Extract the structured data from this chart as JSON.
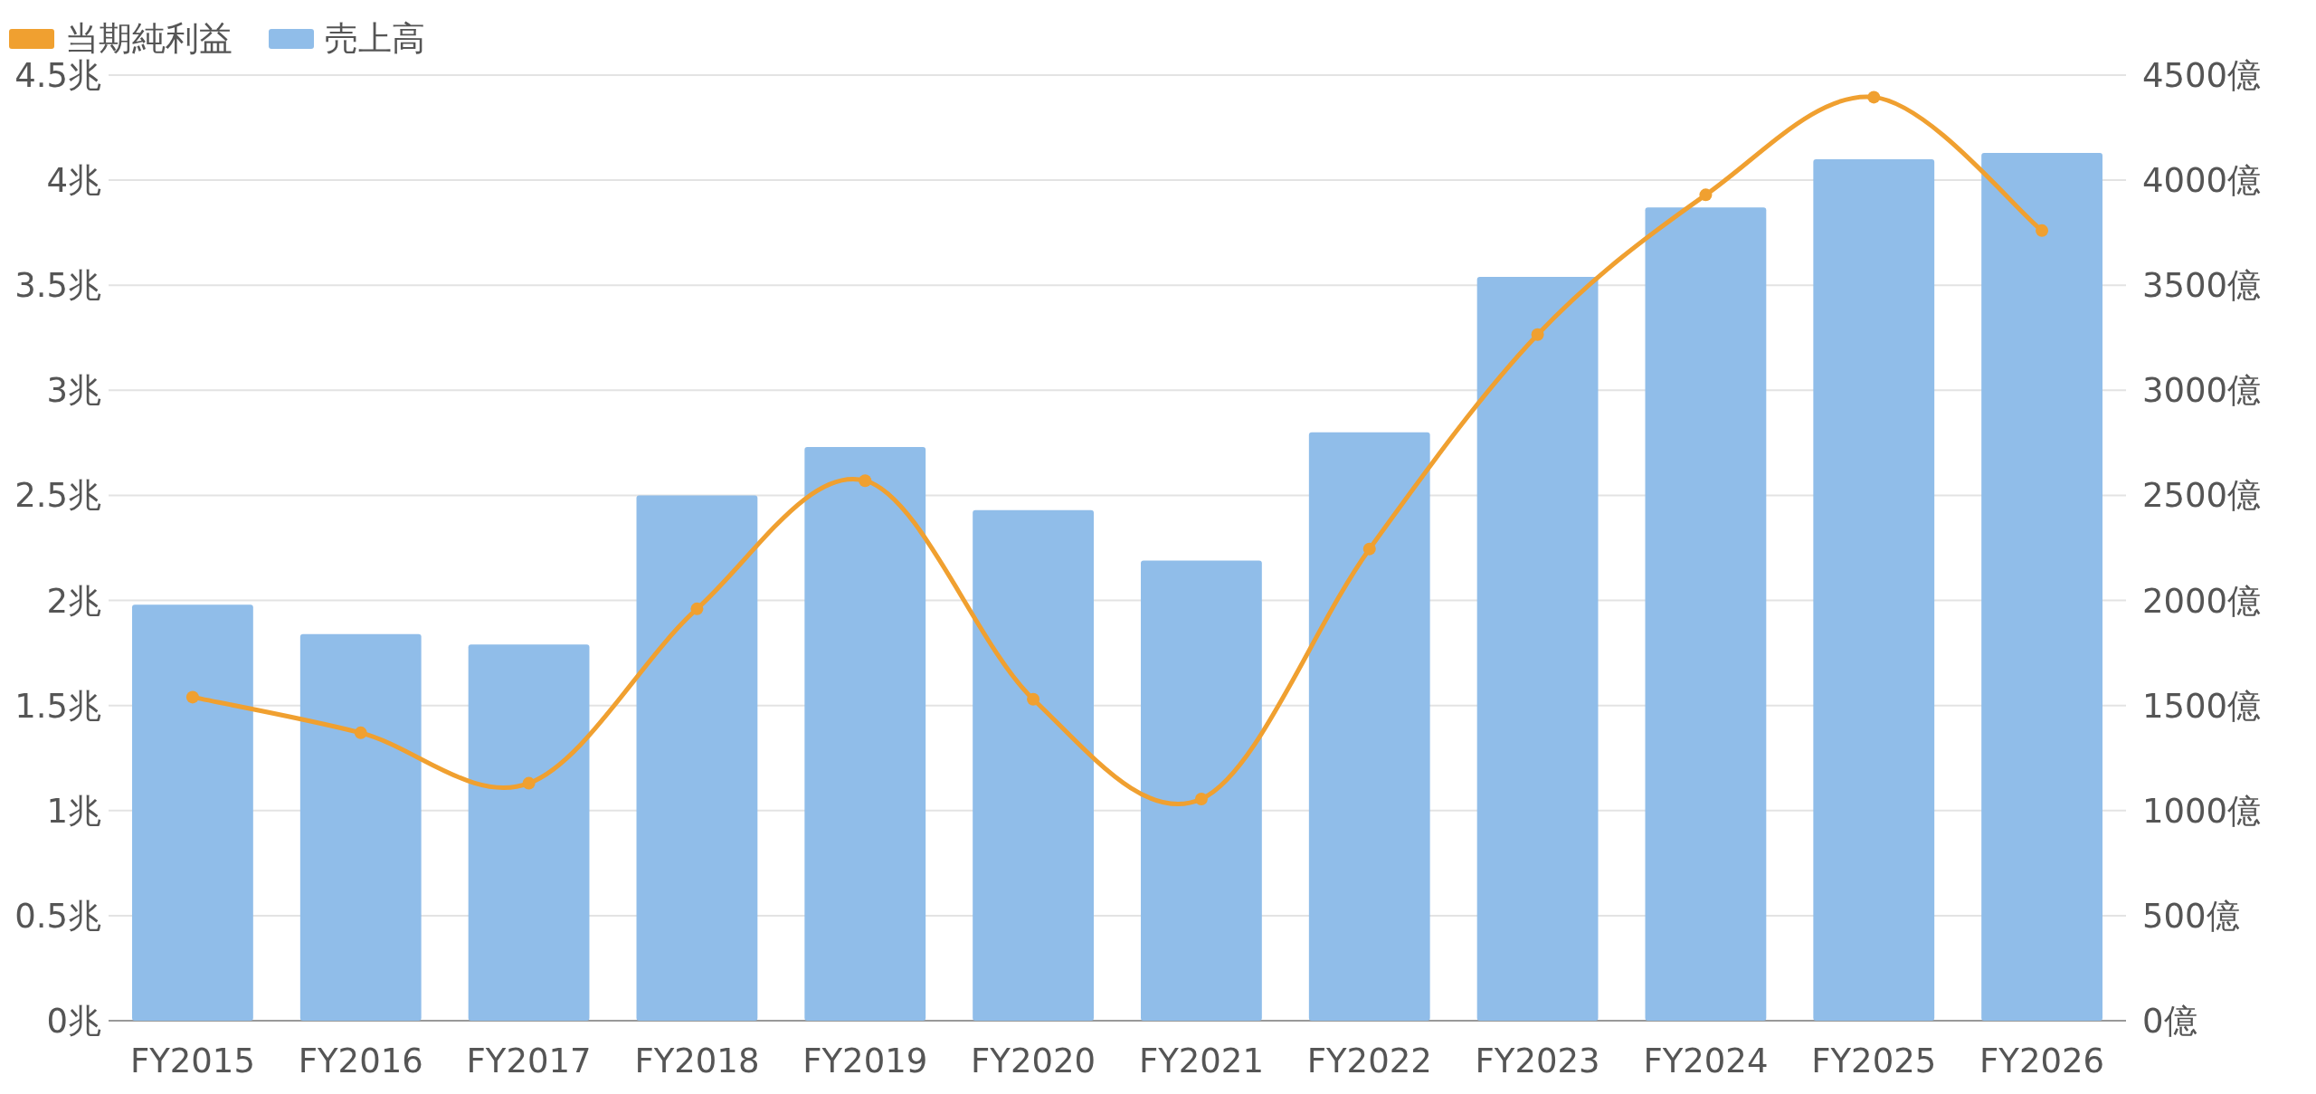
{
  "chart_data": {
    "type": "bar",
    "categories": [
      "FY2015",
      "FY2016",
      "FY2017",
      "FY2018",
      "FY2019",
      "FY2020",
      "FY2021",
      "FY2022",
      "FY2023",
      "FY2024",
      "FY2025",
      "FY2026"
    ],
    "series": [
      {
        "name": "当期純利益",
        "type": "line",
        "axis": "y2",
        "color": "#f0a030",
        "values": [
          1540,
          1370,
          1130,
          1960,
          2570,
          1530,
          1055,
          2245,
          3265,
          3930,
          4395,
          3760
        ]
      },
      {
        "name": "売上高",
        "color": "#90bde9",
        "values": [
          1.98,
          1.84,
          1.79,
          2.5,
          2.73,
          2.43,
          2.19,
          2.8,
          3.54,
          3.87,
          4.1,
          4.13
        ]
      }
    ],
    "ylim": [
      0,
      4.5
    ],
    "yticks": [
      {
        "value": 0,
        "label": "0兆"
      },
      {
        "value": 0.5,
        "label": "0.5兆"
      },
      {
        "value": 1,
        "label": "1兆"
      },
      {
        "value": 1.5,
        "label": "1.5兆"
      },
      {
        "value": 2,
        "label": "2兆"
      },
      {
        "value": 2.5,
        "label": "2.5兆"
      },
      {
        "value": 3,
        "label": "3兆"
      },
      {
        "value": 3.5,
        "label": "3.5兆"
      },
      {
        "value": 4,
        "label": "4兆"
      },
      {
        "value": 4.5,
        "label": "4.5兆"
      }
    ],
    "y2lim": [
      0,
      4500
    ],
    "y2ticks": [
      {
        "value": 0,
        "label": "0億"
      },
      {
        "value": 500,
        "label": "500億"
      },
      {
        "value": 1000,
        "label": "1000億"
      },
      {
        "value": 1500,
        "label": "1500億"
      },
      {
        "value": 2000,
        "label": "2000億"
      },
      {
        "value": 2500,
        "label": "2500億"
      },
      {
        "value": 3000,
        "label": "3000億"
      },
      {
        "value": 3500,
        "label": "3500億"
      },
      {
        "value": 4000,
        "label": "4000億"
      },
      {
        "value": 4500,
        "label": "4500億"
      }
    ],
    "grid": "y",
    "legend": "top left",
    "marker": "circle"
  }
}
